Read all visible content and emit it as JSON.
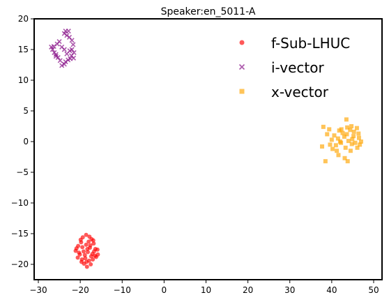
{
  "chart_data": {
    "type": "scatter",
    "title": "Speaker:en_5011-A",
    "xlabel": "",
    "ylabel": "",
    "xlim": [
      -31,
      52
    ],
    "ylim": [
      -22.5,
      20
    ],
    "xticks": [
      -30,
      -20,
      -10,
      0,
      10,
      20,
      30,
      40,
      50
    ],
    "yticks": [
      -20,
      -15,
      -10,
      -5,
      0,
      5,
      10,
      15,
      20
    ],
    "grid": false,
    "legend_position": "top-right",
    "series": [
      {
        "name": "f-Sub-LHUC",
        "marker": "circle",
        "color": "#ff0000",
        "points": [
          [
            -19.8,
            -16.4
          ],
          [
            -18.6,
            -15.2
          ],
          [
            -17.8,
            -15.5
          ],
          [
            -16.9,
            -16.1
          ],
          [
            -20.5,
            -17.0
          ],
          [
            -19.5,
            -17.2
          ],
          [
            -18.6,
            -16.8
          ],
          [
            -17.6,
            -16.9
          ],
          [
            -16.4,
            -17.5
          ],
          [
            -15.9,
            -17.6
          ],
          [
            -21.1,
            -17.8
          ],
          [
            -20.3,
            -18.1
          ],
          [
            -19.2,
            -17.9
          ],
          [
            -18.2,
            -18.0
          ],
          [
            -17.1,
            -18.3
          ],
          [
            -16.5,
            -18.6
          ],
          [
            -20.6,
            -18.9
          ],
          [
            -19.6,
            -19.2
          ],
          [
            -18.8,
            -19.0
          ],
          [
            -17.9,
            -19.4
          ],
          [
            -17.0,
            -19.2
          ],
          [
            -19.1,
            -19.9
          ],
          [
            -18.4,
            -20.4
          ],
          [
            -17.5,
            -20.0
          ],
          [
            -19.9,
            -16.0
          ],
          [
            -18.0,
            -16.3
          ],
          [
            -16.8,
            -16.6
          ],
          [
            -20.9,
            -17.4
          ],
          [
            -18.9,
            -18.5
          ],
          [
            -16.2,
            -18.8
          ],
          [
            -19.4,
            -15.6
          ],
          [
            -17.3,
            -15.9
          ],
          [
            -20.1,
            -18.4
          ],
          [
            -18.5,
            -19.6
          ],
          [
            -17.7,
            -17.3
          ],
          [
            -16.7,
            -17.9
          ],
          [
            -19.7,
            -19.6
          ],
          [
            -18.3,
            -17.5
          ],
          [
            -17.4,
            -18.7
          ],
          [
            -15.8,
            -18.4
          ]
        ]
      },
      {
        "name": "i-vector",
        "marker": "x",
        "color": "#800080",
        "points": [
          [
            -23.5,
            18.0
          ],
          [
            -22.8,
            18.0
          ],
          [
            -23.2,
            17.3
          ],
          [
            -22.6,
            17.0
          ],
          [
            -22.0,
            16.5
          ],
          [
            -21.7,
            15.8
          ],
          [
            -22.0,
            15.0
          ],
          [
            -21.5,
            14.5
          ],
          [
            -22.1,
            14.0
          ],
          [
            -21.6,
            13.6
          ],
          [
            -22.4,
            13.5
          ],
          [
            -22.9,
            13.3
          ],
          [
            -23.5,
            13.0
          ],
          [
            -23.8,
            12.6
          ],
          [
            -24.4,
            12.4
          ],
          [
            -24.8,
            13.2
          ],
          [
            -25.3,
            13.7
          ],
          [
            -25.8,
            14.2
          ],
          [
            -26.2,
            14.5
          ],
          [
            -26.6,
            15.0
          ],
          [
            -26.9,
            15.4
          ],
          [
            -26.3,
            15.5
          ],
          [
            -25.5,
            15.9
          ],
          [
            -25.0,
            16.3
          ],
          [
            -24.4,
            15.4
          ],
          [
            -23.8,
            15.0
          ],
          [
            -23.2,
            14.3
          ],
          [
            -22.5,
            14.8
          ],
          [
            -23.8,
            17.6
          ],
          [
            -25.8,
            13.9
          ]
        ]
      },
      {
        "name": "x-vector",
        "marker": "square",
        "color": "#ffa500",
        "points": [
          [
            38.0,
            2.4
          ],
          [
            38.5,
            -3.2
          ],
          [
            38.9,
            1.2
          ],
          [
            39.6,
            -0.5
          ],
          [
            40.0,
            0.3
          ],
          [
            40.6,
            1.0
          ],
          [
            41.0,
            -0.6
          ],
          [
            41.5,
            0.5
          ],
          [
            41.8,
            1.8
          ],
          [
            42.2,
            -0.2
          ],
          [
            42.6,
            1.4
          ],
          [
            43.0,
            0.8
          ],
          [
            43.3,
            -1.0
          ],
          [
            43.7,
            2.3
          ],
          [
            44.0,
            0.1
          ],
          [
            44.4,
            1.9
          ],
          [
            44.8,
            -0.4
          ],
          [
            45.2,
            0.9
          ],
          [
            45.6,
            -0.2
          ],
          [
            46.0,
            2.2
          ],
          [
            46.4,
            1.3
          ],
          [
            46.7,
            -0.5
          ],
          [
            47.0,
            0.0
          ],
          [
            43.8,
            -3.2
          ],
          [
            44.5,
            -1.5
          ],
          [
            43.5,
            3.6
          ],
          [
            40.2,
            -1.2
          ],
          [
            42.3,
            2.0
          ],
          [
            44.9,
            0.4
          ],
          [
            46.1,
            -1.0
          ],
          [
            37.7,
            -0.8
          ],
          [
            41.2,
            -1.5
          ],
          [
            43.1,
            -2.7
          ],
          [
            44.7,
            2.5
          ],
          [
            42.0,
            0.0
          ],
          [
            45.3,
            1.6
          ],
          [
            46.5,
            0.6
          ],
          [
            39.4,
            2.0
          ],
          [
            41.6,
            -2.2
          ],
          [
            43.6,
            1.2
          ]
        ]
      }
    ]
  }
}
